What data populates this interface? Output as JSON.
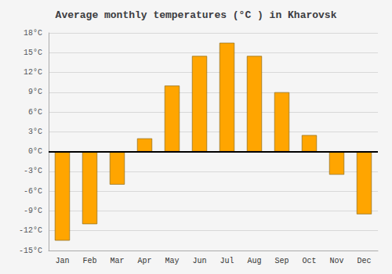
{
  "chart_data": {
    "type": "bar",
    "title": "Average monthly temperatures (°C ) in Kharovsk",
    "categories": [
      "Jan",
      "Feb",
      "Mar",
      "Apr",
      "May",
      "Jun",
      "Jul",
      "Aug",
      "Sep",
      "Oct",
      "Nov",
      "Dec"
    ],
    "values": [
      -13.5,
      -11.0,
      -5.0,
      2.0,
      10.0,
      14.5,
      16.5,
      14.5,
      9.0,
      2.5,
      -3.5,
      -9.5
    ],
    "color": "#FFA500",
    "ylim": [
      -15,
      18
    ],
    "yticks": [
      {
        "value": -15,
        "label": "-15°C"
      },
      {
        "value": -12,
        "label": "-12°C"
      },
      {
        "value": -9,
        "label": "-9°C"
      },
      {
        "value": -6,
        "label": "-6°C"
      },
      {
        "value": -3,
        "label": "-3°C"
      },
      {
        "value": 0,
        "label": "0°C"
      },
      {
        "value": 3,
        "label": "3°C"
      },
      {
        "value": 6,
        "label": "6°C"
      },
      {
        "value": 9,
        "label": "9°C"
      },
      {
        "value": 12,
        "label": "12°C"
      },
      {
        "value": 15,
        "label": "15°C"
      },
      {
        "value": 18,
        "label": "18°C"
      }
    ],
    "grid": true
  }
}
